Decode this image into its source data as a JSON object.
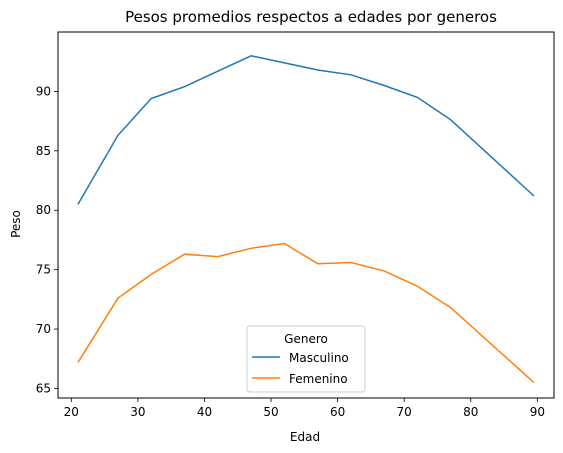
{
  "chart_data": {
    "type": "line",
    "title": "Pesos promedios respectos a edades por generos",
    "xlabel": "Edad",
    "ylabel": "Peso",
    "xlim": [
      18,
      92.5
    ],
    "ylim": [
      64.2,
      95
    ],
    "xticks": [
      20,
      30,
      40,
      50,
      60,
      70,
      80,
      90
    ],
    "yticks": [
      65,
      70,
      75,
      80,
      85,
      90
    ],
    "grid": false,
    "legend": {
      "title": "Genero",
      "position": "lower-center"
    },
    "x": [
      21,
      27,
      32,
      37,
      42,
      47,
      52,
      57,
      62,
      67,
      72,
      77,
      89.5
    ],
    "series": [
      {
        "name": "Masculino",
        "color": "#1f77b4",
        "values": [
          80.5,
          86.3,
          89.4,
          90.4,
          91.7,
          93.0,
          92.4,
          91.8,
          91.4,
          90.5,
          89.5,
          87.6,
          81.2
        ]
      },
      {
        "name": "Femenino",
        "color": "#ff7f0e",
        "values": [
          67.2,
          72.6,
          74.6,
          76.3,
          76.1,
          76.8,
          77.2,
          75.5,
          75.6,
          74.9,
          73.6,
          71.8,
          65.5
        ]
      }
    ]
  }
}
